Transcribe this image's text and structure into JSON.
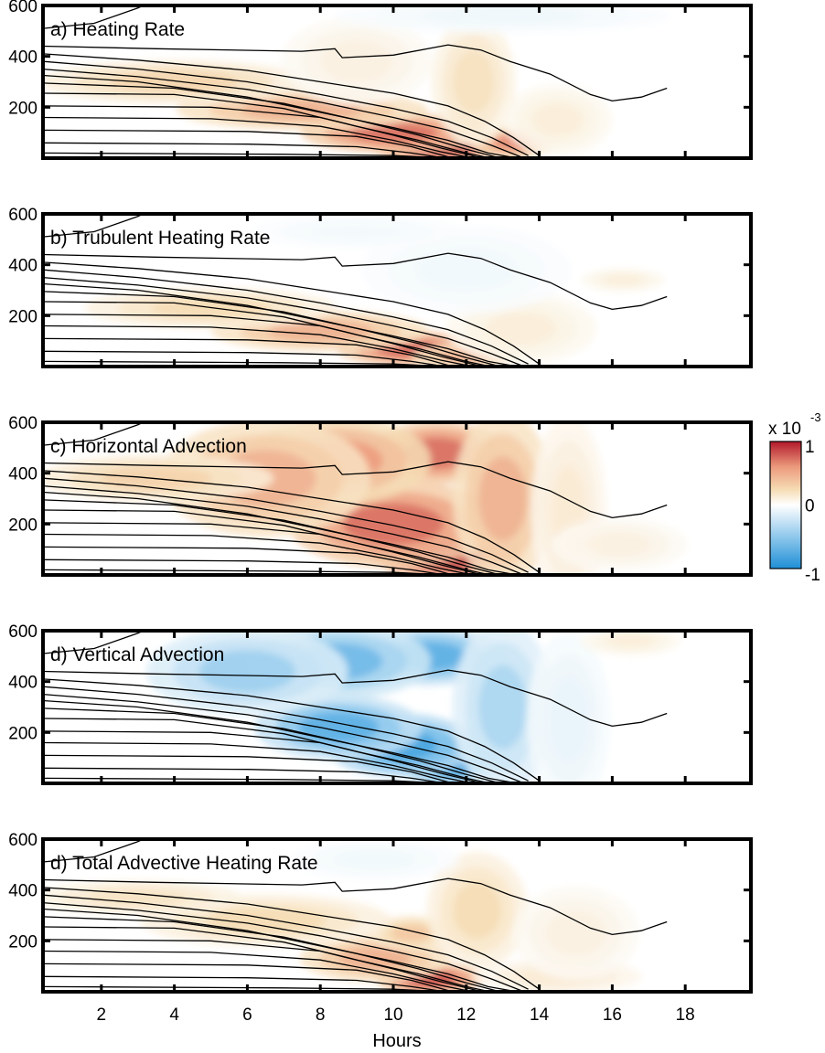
{
  "chart_data": {
    "type": "heatmap",
    "xlabel": "Hours",
    "x_ticks": [
      2,
      4,
      6,
      8,
      10,
      12,
      14,
      16,
      18
    ],
    "xlim": [
      0.4,
      19.8
    ],
    "ylim": [
      0,
      600
    ],
    "y_ticks": [
      200,
      400,
      600
    ],
    "colorbar": {
      "multiplier_label": "x 10",
      "multiplier_exponent": "-3",
      "range": [
        -1,
        1
      ],
      "tick_labels": [
        "1",
        "0",
        "-1"
      ],
      "colors": {
        "low": "#1f8fd6",
        "mid": "#ffffff",
        "high": "#b2182b"
      }
    },
    "contour_lines": [
      {
        "name": "",
        "points": [
          [
            0.4,
            440
          ],
          [
            3.5,
            430
          ],
          [
            7.5,
            420
          ],
          [
            8.4,
            430
          ],
          [
            8.6,
            395
          ],
          [
            10,
            405
          ],
          [
            11.5,
            445
          ],
          [
            12.4,
            425
          ],
          [
            13.2,
            380
          ],
          [
            14.3,
            330
          ],
          [
            15.4,
            250
          ],
          [
            16,
            225
          ],
          [
            16.8,
            240
          ],
          [
            17.5,
            275
          ]
        ]
      },
      {
        "name": "",
        "points": [
          [
            0.4,
            410
          ],
          [
            3,
            385
          ],
          [
            6,
            345
          ],
          [
            8,
            300
          ],
          [
            10,
            255
          ],
          [
            11.5,
            205
          ],
          [
            12.5,
            145
          ],
          [
            13.3,
            80
          ],
          [
            14,
            10
          ]
        ]
      },
      {
        "name": "",
        "points": [
          [
            0.4,
            380
          ],
          [
            3,
            350
          ],
          [
            6,
            300
          ],
          [
            8,
            250
          ],
          [
            10,
            195
          ],
          [
            11.5,
            145
          ],
          [
            12.7,
            80
          ],
          [
            13.7,
            10
          ]
        ]
      },
      {
        "name": "",
        "points": [
          [
            0.4,
            350
          ],
          [
            3,
            320
          ],
          [
            6,
            270
          ],
          [
            8,
            220
          ],
          [
            10,
            160
          ],
          [
            11.5,
            110
          ],
          [
            12.7,
            50
          ],
          [
            13.5,
            5
          ]
        ]
      },
      {
        "name": "",
        "points": [
          [
            0.4,
            325
          ],
          [
            3,
            300
          ],
          [
            6,
            240
          ],
          [
            8,
            180
          ],
          [
            10,
            120
          ],
          [
            11.5,
            70
          ],
          [
            12.6,
            20
          ],
          [
            13.2,
            5
          ]
        ]
      },
      {
        "name": "",
        "points": [
          [
            0.4,
            295
          ],
          [
            4,
            275
          ],
          [
            7,
            215
          ],
          [
            9,
            150
          ],
          [
            10.7,
            90
          ],
          [
            12,
            35
          ],
          [
            12.8,
            5
          ]
        ]
      },
      {
        "name": "",
        "points": [
          [
            0.4,
            255
          ],
          [
            4,
            250
          ],
          [
            7,
            195
          ],
          [
            9,
            125
          ],
          [
            10.7,
            70
          ],
          [
            12,
            20
          ],
          [
            12.5,
            5
          ]
        ]
      },
      {
        "name": "",
        "points": [
          [
            0.4,
            205
          ],
          [
            5,
            200
          ],
          [
            8,
            160
          ],
          [
            10,
            90
          ],
          [
            11.3,
            40
          ],
          [
            12.3,
            5
          ]
        ]
      },
      {
        "name": "",
        "points": [
          [
            0.4,
            160
          ],
          [
            5,
            155
          ],
          [
            8,
            125
          ],
          [
            10,
            70
          ],
          [
            11.3,
            25
          ],
          [
            12,
            5
          ]
        ]
      },
      {
        "name": "",
        "points": [
          [
            0.4,
            110
          ],
          [
            6,
            105
          ],
          [
            9,
            85
          ],
          [
            10.5,
            45
          ],
          [
            11.5,
            5
          ]
        ]
      },
      {
        "name": "",
        "points": [
          [
            0.4,
            60
          ],
          [
            6,
            55
          ],
          [
            9,
            45
          ],
          [
            10.5,
            20
          ],
          [
            11.2,
            5
          ]
        ]
      },
      {
        "name": "",
        "points": [
          [
            0.4,
            20
          ],
          [
            7,
            15
          ],
          [
            10,
            10
          ],
          [
            11,
            3
          ]
        ]
      },
      {
        "name": "",
        "points": [
          [
            0.4,
            510
          ],
          [
            1.8,
            530
          ],
          [
            3,
            590
          ],
          [
            3.3,
            610
          ]
        ]
      }
    ],
    "panels": [
      {
        "title": "a) Heating Rate",
        "blobs": [
          {
            "x": 11.2,
            "y": 50,
            "rx": 1.6,
            "ry": 60,
            "v": 0.95
          },
          {
            "x": 10,
            "y": 100,
            "rx": 2.2,
            "ry": 70,
            "v": 0.7
          },
          {
            "x": 7.5,
            "y": 190,
            "rx": 3.0,
            "ry": 70,
            "v": 0.45
          },
          {
            "x": 4,
            "y": 300,
            "rx": 3.2,
            "ry": 75,
            "v": 0.28
          },
          {
            "x": 13.3,
            "y": 60,
            "rx": 1.0,
            "ry": 55,
            "v": 0.6
          },
          {
            "x": 12.2,
            "y": 300,
            "rx": 1.0,
            "ry": 220,
            "v": 0.22
          },
          {
            "x": 9,
            "y": 380,
            "rx": 1.8,
            "ry": 150,
            "v": 0.1
          },
          {
            "x": 14.5,
            "y": 150,
            "rx": 1.3,
            "ry": 120,
            "v": 0.12
          },
          {
            "x": 13,
            "y": 560,
            "rx": 4,
            "ry": 60,
            "v": -0.08
          }
        ]
      },
      {
        "title": "b) Trubulent Heating Rate",
        "blobs": [
          {
            "x": 10.5,
            "y": 70,
            "rx": 1.8,
            "ry": 60,
            "v": 0.75
          },
          {
            "x": 8,
            "y": 140,
            "rx": 2.6,
            "ry": 70,
            "v": 0.45
          },
          {
            "x": 5,
            "y": 230,
            "rx": 3.0,
            "ry": 70,
            "v": 0.25
          },
          {
            "x": 12,
            "y": 40,
            "rx": 1.3,
            "ry": 45,
            "v": 0.45
          },
          {
            "x": 13.5,
            "y": 150,
            "rx": 1.8,
            "ry": 120,
            "v": 0.12
          },
          {
            "x": 12,
            "y": 380,
            "rx": 2.5,
            "ry": 150,
            "v": -0.07
          },
          {
            "x": 16.3,
            "y": 340,
            "rx": 1.0,
            "ry": 40,
            "v": 0.12
          },
          {
            "x": 9,
            "y": 530,
            "rx": 2.5,
            "ry": 60,
            "v": -0.06
          }
        ]
      },
      {
        "title": "c) Horizontal Advection",
        "blobs": [
          {
            "x": 11.5,
            "y": 80,
            "rx": 1.8,
            "ry": 90,
            "v": 0.95
          },
          {
            "x": 10,
            "y": 200,
            "rx": 2.5,
            "ry": 150,
            "v": 0.7
          },
          {
            "x": 11.2,
            "y": 480,
            "rx": 1.6,
            "ry": 110,
            "v": 0.7
          },
          {
            "x": 8.5,
            "y": 450,
            "rx": 2.2,
            "ry": 150,
            "v": 0.55
          },
          {
            "x": 6.5,
            "y": 380,
            "rx": 2.5,
            "ry": 200,
            "v": 0.45
          },
          {
            "x": 3.5,
            "y": 380,
            "rx": 2.8,
            "ry": 80,
            "v": 0.3
          },
          {
            "x": 13,
            "y": 300,
            "rx": 1.2,
            "ry": 300,
            "v": 0.45
          },
          {
            "x": 14.8,
            "y": 250,
            "rx": 0.9,
            "ry": 330,
            "v": 0.15
          },
          {
            "x": 16.2,
            "y": 120,
            "rx": 1.6,
            "ry": 90,
            "v": 0.1
          }
        ]
      },
      {
        "title": "d) Vertical Advection",
        "blobs": [
          {
            "x": 11.5,
            "y": 80,
            "rx": 1.2,
            "ry": 80,
            "v": -0.85
          },
          {
            "x": 10.2,
            "y": 150,
            "rx": 1.8,
            "ry": 110,
            "v": -0.8
          },
          {
            "x": 8.5,
            "y": 220,
            "rx": 2.0,
            "ry": 110,
            "v": -0.7
          },
          {
            "x": 11,
            "y": 500,
            "rx": 1.8,
            "ry": 100,
            "v": -0.7
          },
          {
            "x": 8.5,
            "y": 480,
            "rx": 2.2,
            "ry": 130,
            "v": -0.6
          },
          {
            "x": 6,
            "y": 440,
            "rx": 2.4,
            "ry": 150,
            "v": -0.45
          },
          {
            "x": 13,
            "y": 300,
            "rx": 1.2,
            "ry": 300,
            "v": -0.4
          },
          {
            "x": 14.8,
            "y": 250,
            "rx": 1.0,
            "ry": 300,
            "v": -0.12
          },
          {
            "x": 16.5,
            "y": 560,
            "rx": 1.2,
            "ry": 50,
            "v": 0.12
          }
        ]
      },
      {
        "title": "d) Total Advective Heating Rate",
        "blobs": [
          {
            "x": 11,
            "y": 50,
            "rx": 1.3,
            "ry": 55,
            "v": 0.8
          },
          {
            "x": 9.5,
            "y": 130,
            "rx": 1.8,
            "ry": 80,
            "v": 0.45
          },
          {
            "x": 10.5,
            "y": 230,
            "rx": 1.0,
            "ry": 60,
            "v": 0.35
          },
          {
            "x": 6.5,
            "y": 280,
            "rx": 3.0,
            "ry": 90,
            "v": 0.25
          },
          {
            "x": 3,
            "y": 370,
            "rx": 2.5,
            "ry": 60,
            "v": 0.2
          },
          {
            "x": 12.3,
            "y": 320,
            "rx": 1.2,
            "ry": 200,
            "v": 0.25
          },
          {
            "x": 14.5,
            "y": 60,
            "rx": 2.0,
            "ry": 60,
            "v": 0.15
          },
          {
            "x": 15,
            "y": 230,
            "rx": 1.5,
            "ry": 160,
            "v": 0.1
          },
          {
            "x": 9.5,
            "y": 520,
            "rx": 2.0,
            "ry": 70,
            "v": -0.07
          }
        ]
      }
    ]
  }
}
